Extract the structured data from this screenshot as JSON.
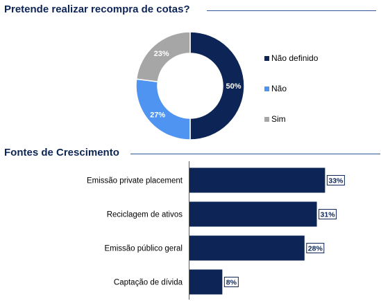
{
  "pie_section": {
    "title": "Pretende realizar recompra de cotas?"
  },
  "bar_section": {
    "title": "Fontes de Crescimento"
  },
  "colors": {
    "navy": "#0d2556",
    "light_blue": "#4f94f0",
    "gray": "#a6a6a6",
    "rule": "#2f5597"
  },
  "chart_data": [
    {
      "type": "pie",
      "title": "Pretende realizar recompra de cotas?",
      "donut": true,
      "legend_position": "right",
      "slices": [
        {
          "label": "Não definido",
          "value": 50,
          "display": "50%",
          "color": "#0d2556"
        },
        {
          "label": "Não",
          "value": 27,
          "display": "27%",
          "color": "#4f94f0"
        },
        {
          "label": "Sim",
          "value": 23,
          "display": "23%",
          "color": "#a6a6a6"
        }
      ]
    },
    {
      "type": "bar",
      "orientation": "horizontal",
      "title": "Fontes de Crescimento",
      "categories": [
        "Emissão private placement",
        "Reciclagem de ativos",
        "Emissão público geral",
        "Captação de dívida"
      ],
      "values": [
        33,
        31,
        28,
        8
      ],
      "value_labels": [
        "33%",
        "31%",
        "28%",
        "8%"
      ],
      "xlim": [
        0,
        38
      ],
      "grid": false
    }
  ]
}
